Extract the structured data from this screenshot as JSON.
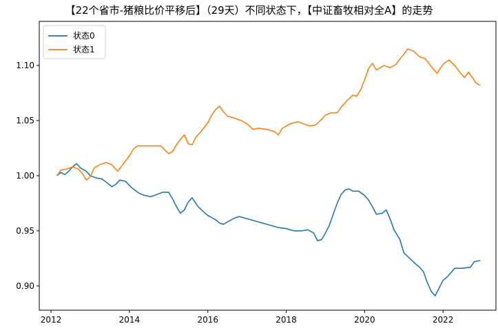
{
  "chart_data": {
    "type": "line",
    "title": "【22个省市-猪粮比价平移后】（29天）不同状态下，【中证畜牧相对全A】的走势",
    "xlabel": "",
    "ylabel": "",
    "xlim": [
      2011.7,
      2023.35
    ],
    "ylim": [
      0.878,
      1.14
    ],
    "x_ticks": [
      2012,
      2014,
      2016,
      2018,
      2020,
      2022
    ],
    "y_ticks": [
      0.9,
      0.95,
      1.0,
      1.05,
      1.1
    ],
    "grid": false,
    "legend_position": "top-left",
    "series": [
      {
        "name": "状态0",
        "color": "#1f77b4",
        "points": [
          [
            2012.15,
            1.0
          ],
          [
            2012.25,
            1.003
          ],
          [
            2012.35,
            1.001
          ],
          [
            2012.45,
            1.004
          ],
          [
            2012.55,
            1.008
          ],
          [
            2012.65,
            1.011
          ],
          [
            2012.75,
            1.007
          ],
          [
            2012.9,
            1.004
          ],
          [
            2013.0,
            1.0
          ],
          [
            2013.15,
            0.998
          ],
          [
            2013.3,
            0.997
          ],
          [
            2013.45,
            0.993
          ],
          [
            2013.55,
            0.99
          ],
          [
            2013.65,
            0.992
          ],
          [
            2013.75,
            0.996
          ],
          [
            2013.9,
            0.995
          ],
          [
            2014.0,
            0.991
          ],
          [
            2014.1,
            0.988
          ],
          [
            2014.25,
            0.984
          ],
          [
            2014.4,
            0.982
          ],
          [
            2014.55,
            0.981
          ],
          [
            2014.7,
            0.983
          ],
          [
            2014.85,
            0.985
          ],
          [
            2015.0,
            0.985
          ],
          [
            2015.1,
            0.979
          ],
          [
            2015.2,
            0.972
          ],
          [
            2015.3,
            0.966
          ],
          [
            2015.4,
            0.969
          ],
          [
            2015.5,
            0.976
          ],
          [
            2015.6,
            0.98
          ],
          [
            2015.75,
            0.972
          ],
          [
            2015.9,
            0.967
          ],
          [
            2016.0,
            0.964
          ],
          [
            2016.1,
            0.962
          ],
          [
            2016.2,
            0.96
          ],
          [
            2016.3,
            0.957
          ],
          [
            2016.4,
            0.956
          ],
          [
            2016.5,
            0.958
          ],
          [
            2016.65,
            0.961
          ],
          [
            2016.8,
            0.963
          ],
          [
            2017.0,
            0.961
          ],
          [
            2017.2,
            0.959
          ],
          [
            2017.4,
            0.957
          ],
          [
            2017.6,
            0.955
          ],
          [
            2017.8,
            0.953
          ],
          [
            2018.0,
            0.952
          ],
          [
            2018.2,
            0.95
          ],
          [
            2018.4,
            0.95
          ],
          [
            2018.55,
            0.951
          ],
          [
            2018.7,
            0.948
          ],
          [
            2018.8,
            0.941
          ],
          [
            2018.9,
            0.942
          ],
          [
            2019.0,
            0.948
          ],
          [
            2019.1,
            0.955
          ],
          [
            2019.2,
            0.965
          ],
          [
            2019.3,
            0.975
          ],
          [
            2019.4,
            0.983
          ],
          [
            2019.5,
            0.987
          ],
          [
            2019.6,
            0.988
          ],
          [
            2019.7,
            0.986
          ],
          [
            2019.85,
            0.986
          ],
          [
            2020.0,
            0.982
          ],
          [
            2020.1,
            0.978
          ],
          [
            2020.2,
            0.972
          ],
          [
            2020.3,
            0.965
          ],
          [
            2020.45,
            0.966
          ],
          [
            2020.55,
            0.969
          ],
          [
            2020.65,
            0.961
          ],
          [
            2020.75,
            0.951
          ],
          [
            2020.9,
            0.942
          ],
          [
            2021.0,
            0.93
          ],
          [
            2021.15,
            0.925
          ],
          [
            2021.3,
            0.92
          ],
          [
            2021.4,
            0.917
          ],
          [
            2021.5,
            0.913
          ],
          [
            2021.6,
            0.903
          ],
          [
            2021.7,
            0.895
          ],
          [
            2021.8,
            0.891
          ],
          [
            2021.9,
            0.898
          ],
          [
            2022.0,
            0.905
          ],
          [
            2022.1,
            0.908
          ],
          [
            2022.2,
            0.912
          ],
          [
            2022.3,
            0.916
          ],
          [
            2022.5,
            0.916
          ],
          [
            2022.7,
            0.917
          ],
          [
            2022.8,
            0.922
          ],
          [
            2022.95,
            0.923
          ]
        ]
      },
      {
        "name": "状态1",
        "color": "#ff7f0e",
        "points": [
          [
            2012.15,
            1.0
          ],
          [
            2012.25,
            1.005
          ],
          [
            2012.4,
            1.006
          ],
          [
            2012.55,
            1.008
          ],
          [
            2012.7,
            1.006
          ],
          [
            2012.8,
            1.002
          ],
          [
            2012.9,
            0.996
          ],
          [
            2013.0,
            0.999
          ],
          [
            2013.1,
            1.007
          ],
          [
            2013.25,
            1.01
          ],
          [
            2013.4,
            1.012
          ],
          [
            2013.55,
            1.01
          ],
          [
            2013.7,
            1.004
          ],
          [
            2013.85,
            1.011
          ],
          [
            2014.0,
            1.018
          ],
          [
            2014.1,
            1.024
          ],
          [
            2014.2,
            1.027
          ],
          [
            2014.4,
            1.027
          ],
          [
            2014.6,
            1.027
          ],
          [
            2014.8,
            1.027
          ],
          [
            2015.0,
            1.02
          ],
          [
            2015.1,
            1.022
          ],
          [
            2015.2,
            1.028
          ],
          [
            2015.3,
            1.033
          ],
          [
            2015.4,
            1.037
          ],
          [
            2015.5,
            1.029
          ],
          [
            2015.6,
            1.028
          ],
          [
            2015.7,
            1.035
          ],
          [
            2015.8,
            1.039
          ],
          [
            2016.0,
            1.048
          ],
          [
            2016.1,
            1.055
          ],
          [
            2016.2,
            1.06
          ],
          [
            2016.3,
            1.063
          ],
          [
            2016.4,
            1.058
          ],
          [
            2016.5,
            1.054
          ],
          [
            2016.7,
            1.052
          ],
          [
            2016.85,
            1.05
          ],
          [
            2017.0,
            1.047
          ],
          [
            2017.15,
            1.042
          ],
          [
            2017.3,
            1.043
          ],
          [
            2017.5,
            1.042
          ],
          [
            2017.7,
            1.04
          ],
          [
            2017.8,
            1.037
          ],
          [
            2017.9,
            1.043
          ],
          [
            2018.1,
            1.047
          ],
          [
            2018.3,
            1.049
          ],
          [
            2018.45,
            1.047
          ],
          [
            2018.6,
            1.045
          ],
          [
            2018.75,
            1.046
          ],
          [
            2018.9,
            1.051
          ],
          [
            2019.0,
            1.055
          ],
          [
            2019.15,
            1.057
          ],
          [
            2019.3,
            1.057
          ],
          [
            2019.4,
            1.062
          ],
          [
            2019.55,
            1.068
          ],
          [
            2019.7,
            1.073
          ],
          [
            2019.8,
            1.072
          ],
          [
            2019.9,
            1.078
          ],
          [
            2020.0,
            1.087
          ],
          [
            2020.1,
            1.097
          ],
          [
            2020.2,
            1.102
          ],
          [
            2020.3,
            1.096
          ],
          [
            2020.5,
            1.1
          ],
          [
            2020.65,
            1.098
          ],
          [
            2020.8,
            1.101
          ],
          [
            2020.9,
            1.106
          ],
          [
            2021.0,
            1.11
          ],
          [
            2021.1,
            1.115
          ],
          [
            2021.25,
            1.113
          ],
          [
            2021.4,
            1.108
          ],
          [
            2021.55,
            1.106
          ],
          [
            2021.7,
            1.099
          ],
          [
            2021.85,
            1.093
          ],
          [
            2022.0,
            1.101
          ],
          [
            2022.15,
            1.105
          ],
          [
            2022.3,
            1.1
          ],
          [
            2022.45,
            1.093
          ],
          [
            2022.55,
            1.089
          ],
          [
            2022.65,
            1.094
          ],
          [
            2022.75,
            1.089
          ],
          [
            2022.85,
            1.084
          ],
          [
            2022.95,
            1.082
          ]
        ]
      }
    ]
  }
}
